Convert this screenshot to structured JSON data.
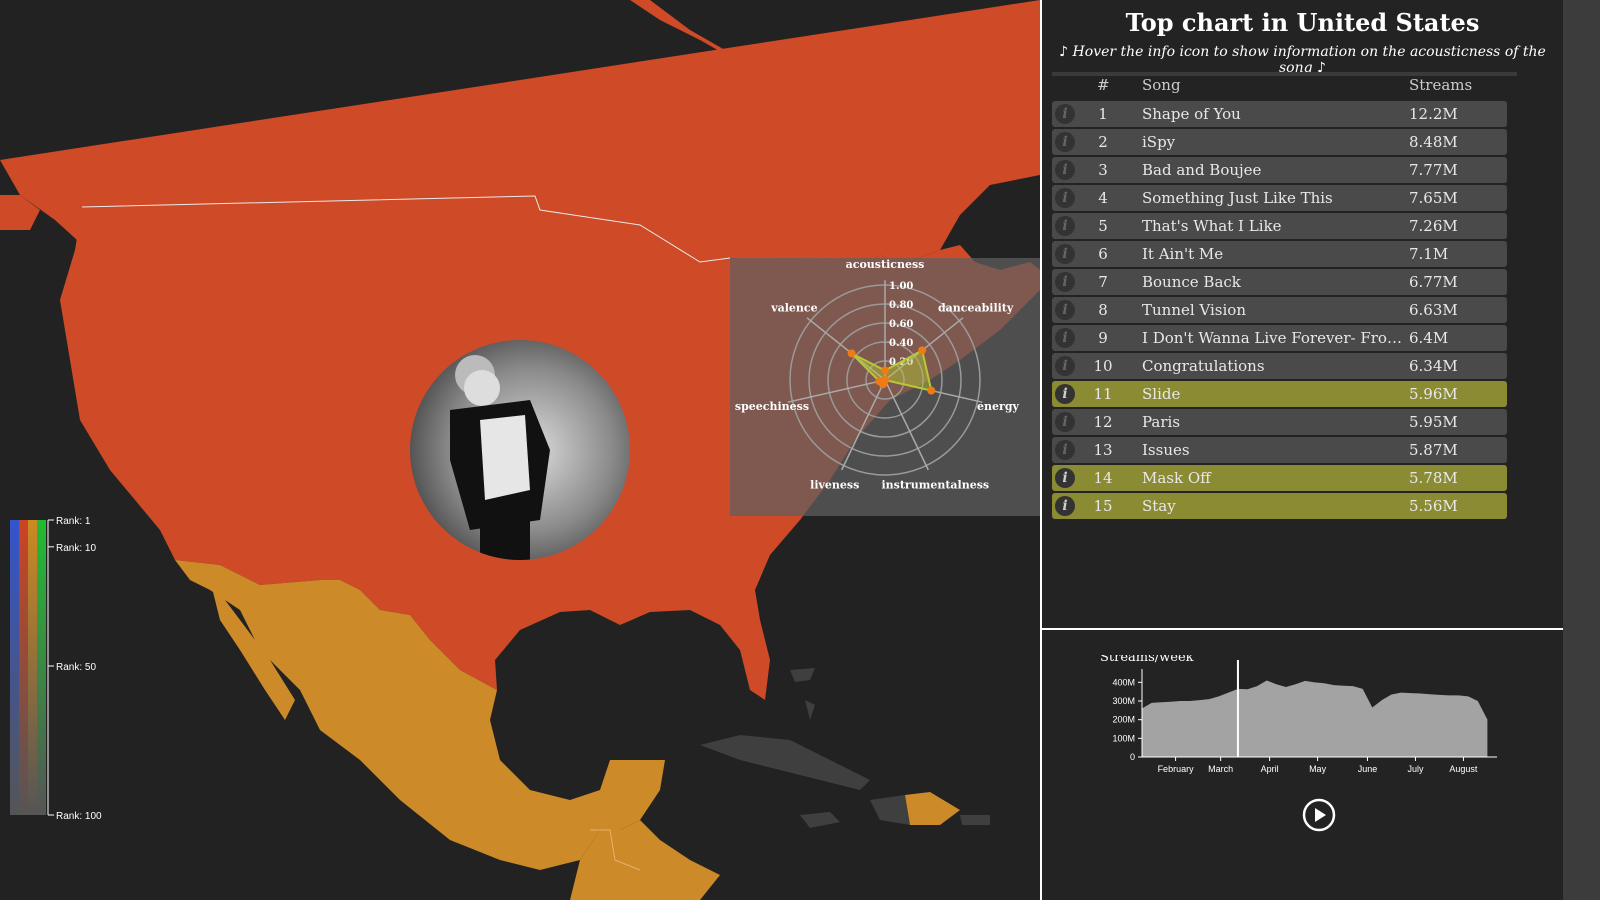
{
  "panel": {
    "title": "Top chart in United States",
    "subtitle": "♪ Hover the info icon to show information on the acousticness of the song ♪",
    "headers": {
      "rank": "#",
      "song": "Song",
      "streams": "Streams"
    },
    "info_icon_label": "i",
    "rows": [
      {
        "rank": "1",
        "song": "Shape of You",
        "streams": "12.2M",
        "highlighted": false
      },
      {
        "rank": "2",
        "song": "iSpy",
        "streams": "8.48M",
        "highlighted": false
      },
      {
        "rank": "3",
        "song": "Bad and Boujee",
        "streams": "7.77M",
        "highlighted": false
      },
      {
        "rank": "4",
        "song": "Something Just Like This",
        "streams": "7.65M",
        "highlighted": false
      },
      {
        "rank": "5",
        "song": "That's What I Like",
        "streams": "7.26M",
        "highlighted": false
      },
      {
        "rank": "6",
        "song": "It Ain't Me",
        "streams": "7.1M",
        "highlighted": false
      },
      {
        "rank": "7",
        "song": "Bounce Back",
        "streams": "6.77M",
        "highlighted": false
      },
      {
        "rank": "8",
        "song": "Tunnel Vision",
        "streams": "6.63M",
        "highlighted": false
      },
      {
        "rank": "9",
        "song": "I Don't Wanna Live Forever- From \"Fifty Shades Darker\"",
        "streams": "6.4M",
        "highlighted": false
      },
      {
        "rank": "10",
        "song": "Congratulations",
        "streams": "6.34M",
        "highlighted": false
      },
      {
        "rank": "11",
        "song": "Slide",
        "streams": "5.96M",
        "highlighted": true
      },
      {
        "rank": "12",
        "song": "Paris",
        "streams": "5.95M",
        "highlighted": false
      },
      {
        "rank": "13",
        "song": "Issues",
        "streams": "5.87M",
        "highlighted": false
      },
      {
        "rank": "14",
        "song": "Mask Off",
        "streams": "5.78M",
        "highlighted": true
      },
      {
        "rank": "15",
        "song": "Stay",
        "streams": "5.56M",
        "highlighted": true
      }
    ]
  },
  "colors": {
    "country_selected": "#cf4a27",
    "country_ranked": "#cc8a29",
    "country_other": "#3f3f3f",
    "background": "#222222",
    "row": "#4a4a4a",
    "row_highlight": "#8b8b34",
    "radar_series": "#b8c832",
    "radar_point": "#f07a14",
    "area_fill": "#a3a3a3"
  },
  "legend": {
    "labels": [
      "Rank: 1",
      "Rank: 10",
      "Rank: 50",
      "Rank: 100"
    ],
    "ranks": [
      1,
      10,
      50,
      100
    ],
    "bar_colors": [
      "#3355cc",
      "#cc4422",
      "#cc8a22",
      "#22bb33"
    ]
  },
  "radar": {
    "axes": [
      "acousticness",
      "danceability",
      "energy",
      "instrumentalness",
      "liveness",
      "speechiness",
      "valence"
    ],
    "tick_values": [
      0.2,
      0.4,
      0.6,
      0.8,
      1.0
    ],
    "tick_labels": [
      "0.20",
      "0.40",
      "0.60",
      "0.80",
      "1.00"
    ],
    "values": [
      0.1,
      0.5,
      0.5,
      0.0,
      0.05,
      0.06,
      0.45
    ]
  },
  "chart_data": {
    "type": "area",
    "title": "Streams/week",
    "x_labels": [
      "February",
      "March",
      "April",
      "May",
      "June",
      "July",
      "August"
    ],
    "x_label_positions": [
      3.5,
      8.2,
      13.3,
      18.3,
      23.5,
      28.5,
      33.5
    ],
    "y_ticks": [
      0,
      100000000,
      200000000,
      300000000,
      400000000
    ],
    "y_tick_labels": [
      "0",
      "100M",
      "200M",
      "300M",
      "400M"
    ],
    "ylim": [
      0,
      450000000
    ],
    "xlim": [
      0,
      37
    ],
    "marker_week": 10,
    "values": [
      260000000,
      290000000,
      293000000,
      296000000,
      300000000,
      300000000,
      305000000,
      310000000,
      325000000,
      345000000,
      365000000,
      363000000,
      380000000,
      410000000,
      390000000,
      375000000,
      390000000,
      408000000,
      400000000,
      395000000,
      385000000,
      382000000,
      380000000,
      365000000,
      265000000,
      305000000,
      335000000,
      345000000,
      342000000,
      340000000,
      336000000,
      333000000,
      330000000,
      330000000,
      325000000,
      300000000,
      200000000
    ]
  }
}
